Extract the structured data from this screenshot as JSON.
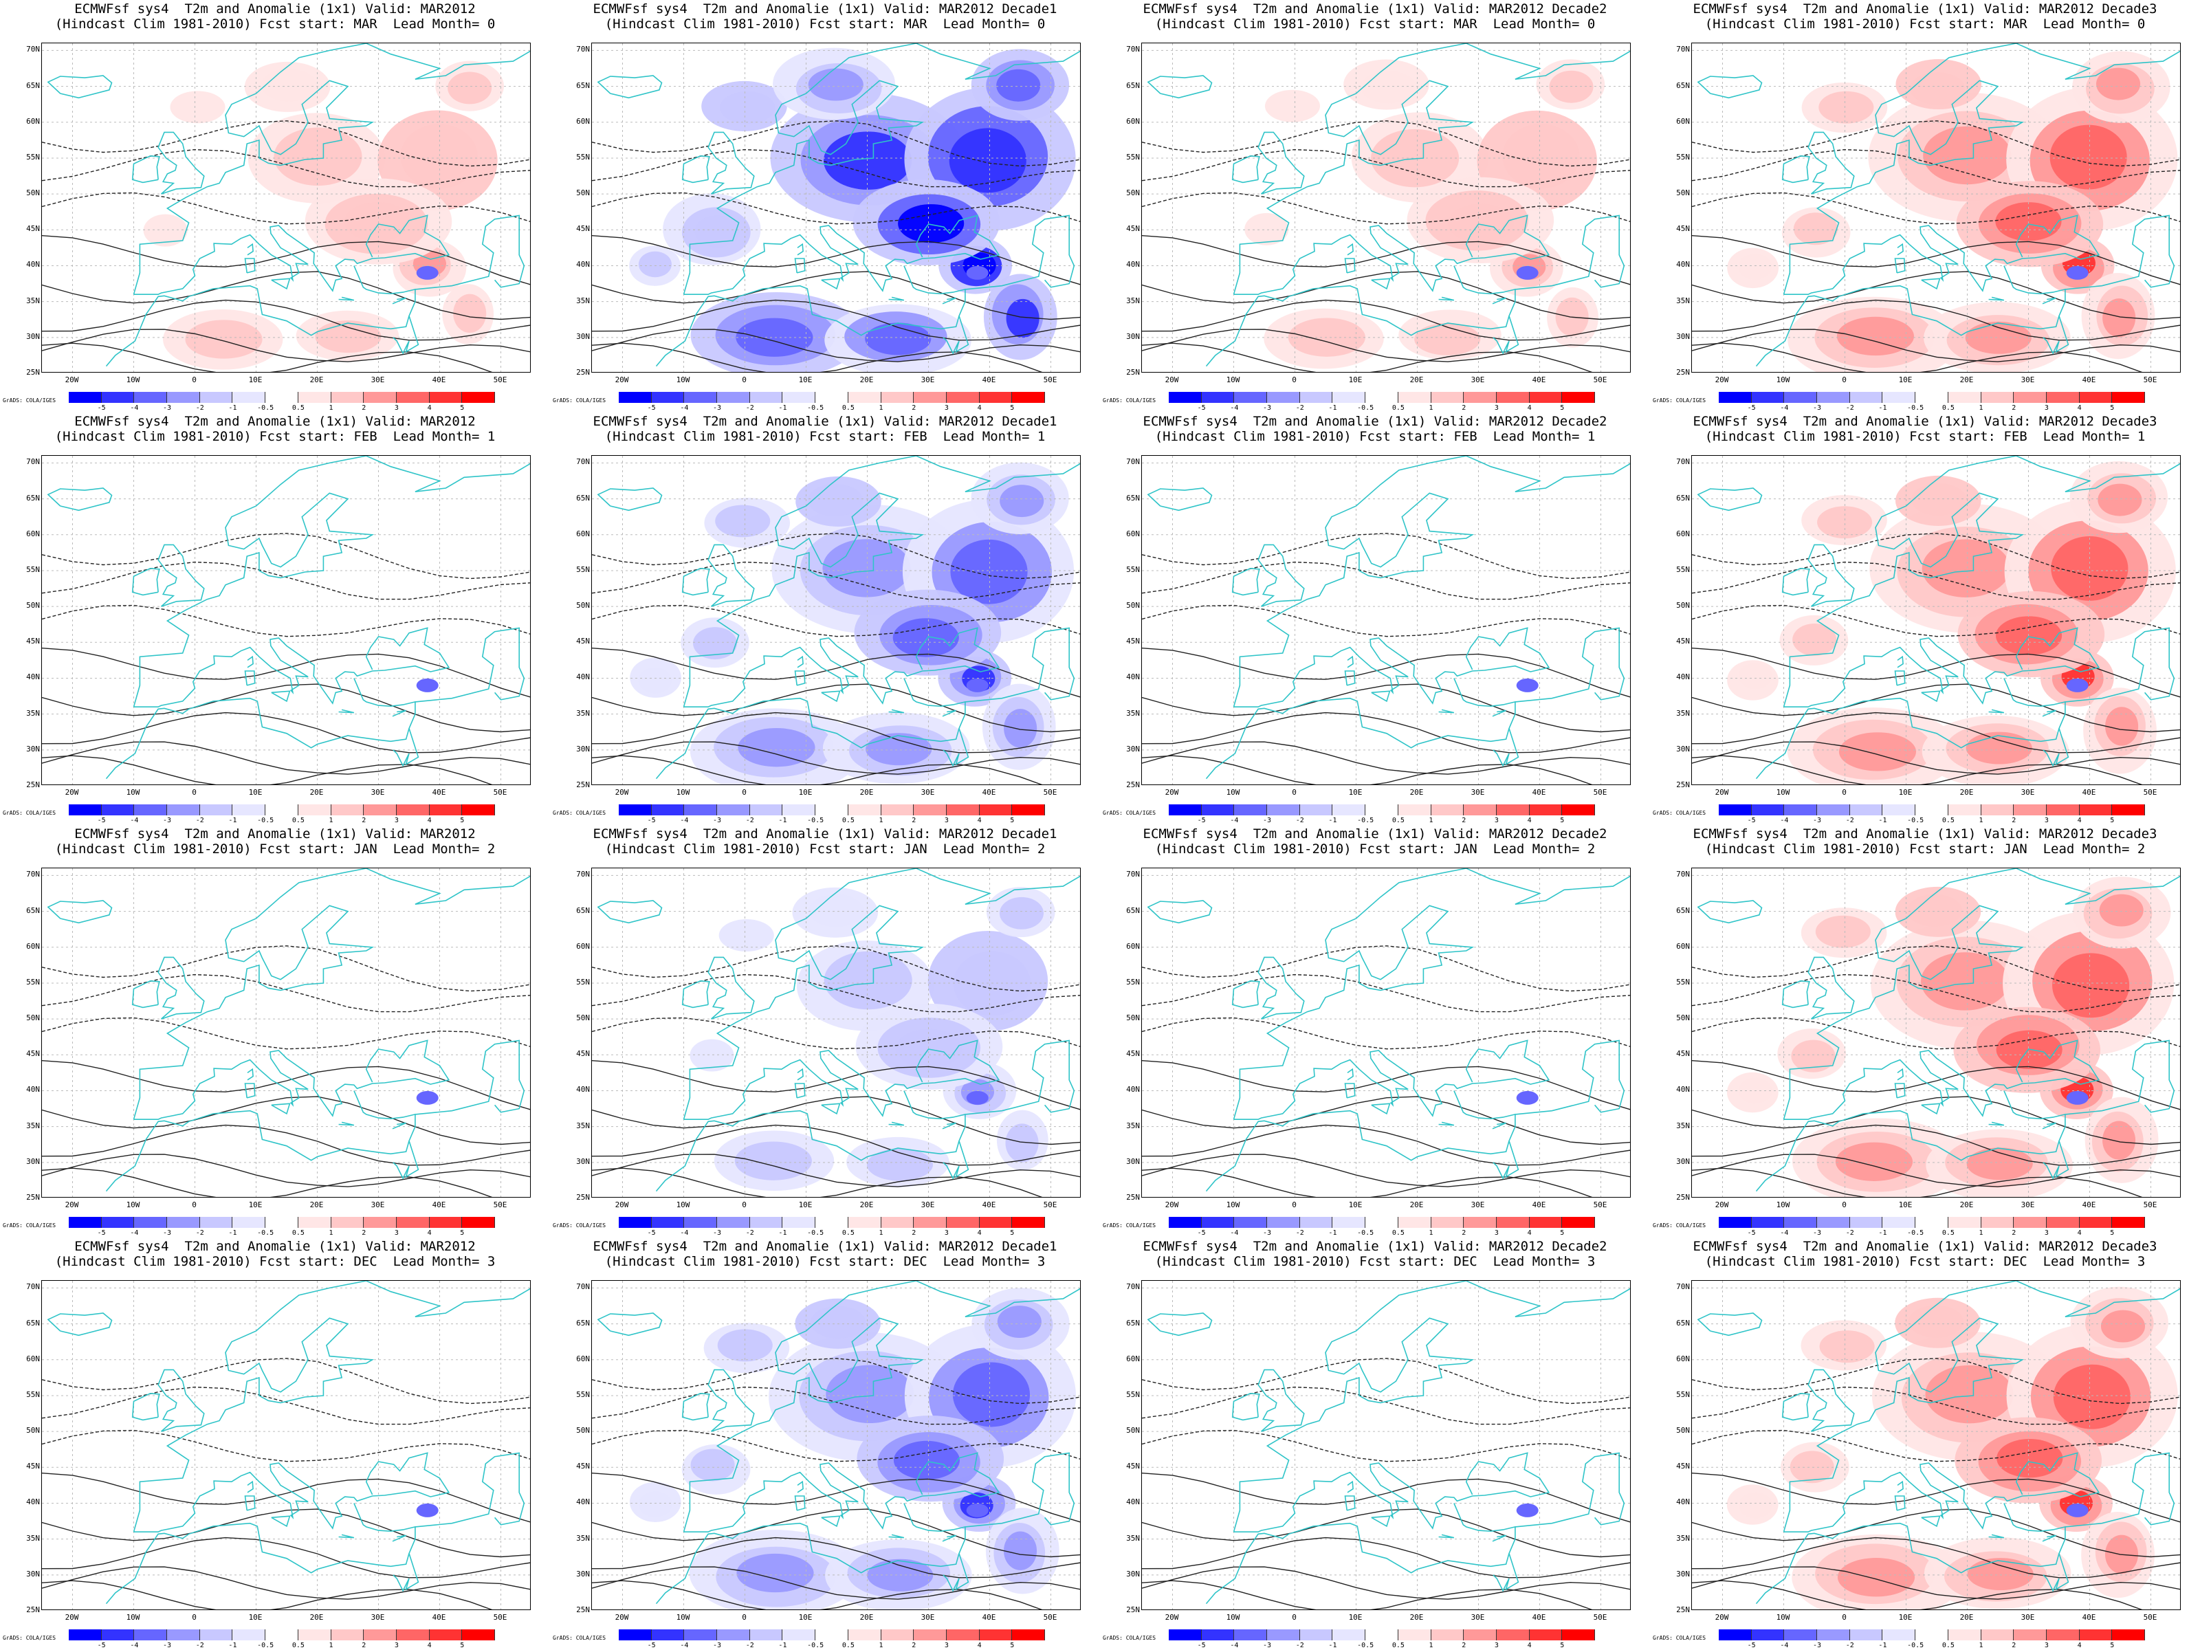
{
  "panels": [
    {
      "title1": "ECMWFsf sys4  T2m and Anomalie (1x1) Valid: MAR2012",
      "title2": "(Hindcast Clim 1981-2010) Fcst start: MAR  Lead Month= 0",
      "anom": 1
    },
    {
      "title1": "ECMWFsf sys4  T2m and Anomalie (1x1) Valid: MAR2012 Decade1",
      "title2": "(Hindcast Clim 1981-2010) Fcst start: MAR  Lead Month= 0",
      "anom": -3
    },
    {
      "title1": "ECMWFsf sys4  T2m and Anomalie (1x1) Valid: MAR2012 Decade2",
      "title2": "(Hindcast Clim 1981-2010) Fcst start: MAR  Lead Month= 0",
      "anom": 1
    },
    {
      "title1": "ECMWFsf sys4  T2m and Anomalie (1x1) Valid: MAR2012 Decade3",
      "title2": "(Hindcast Clim 1981-2010) Fcst start: MAR  Lead Month= 0",
      "anom": 2
    },
    {
      "title1": "ECMWFsf sys4  T2m and Anomalie (1x1) Valid: MAR2012",
      "title2": "(Hindcast Clim 1981-2010) Fcst start: FEB  Lead Month= 1",
      "anom": 0
    },
    {
      "title1": "ECMWFsf sys4  T2m and Anomalie (1x1) Valid: MAR2012 Decade1",
      "title2": "(Hindcast Clim 1981-2010) Fcst start: FEB  Lead Month= 1",
      "anom": -2
    },
    {
      "title1": "ECMWFsf sys4  T2m and Anomalie (1x1) Valid: MAR2012 Decade2",
      "title2": "(Hindcast Clim 1981-2010) Fcst start: FEB  Lead Month= 1",
      "anom": 0
    },
    {
      "title1": "ECMWFsf sys4  T2m and Anomalie (1x1) Valid: MAR2012 Decade3",
      "title2": "(Hindcast Clim 1981-2010) Fcst start: FEB  Lead Month= 1",
      "anom": 2
    },
    {
      "title1": "ECMWFsf sys4  T2m and Anomalie (1x1) Valid: MAR2012",
      "title2": "(Hindcast Clim 1981-2010) Fcst start: JAN  Lead Month= 2",
      "anom": 0
    },
    {
      "title1": "ECMWFsf sys4  T2m and Anomalie (1x1) Valid: MAR2012 Decade1",
      "title2": "(Hindcast Clim 1981-2010) Fcst start: JAN  Lead Month= 2",
      "anom": -1
    },
    {
      "title1": "ECMWFsf sys4  T2m and Anomalie (1x1) Valid: MAR2012 Decade2",
      "title2": "(Hindcast Clim 1981-2010) Fcst start: JAN  Lead Month= 2",
      "anom": 0
    },
    {
      "title1": "ECMWFsf sys4  T2m and Anomalie (1x1) Valid: MAR2012 Decade3",
      "title2": "(Hindcast Clim 1981-2010) Fcst start: JAN  Lead Month= 2",
      "anom": 2
    },
    {
      "title1": "ECMWFsf sys4  T2m and Anomalie (1x1) Valid: MAR2012",
      "title2": "(Hindcast Clim 1981-2010) Fcst start: DEC  Lead Month= 3",
      "anom": 0
    },
    {
      "title1": "ECMWFsf sys4  T2m and Anomalie (1x1) Valid: MAR2012 Decade1",
      "title2": "(Hindcast Clim 1981-2010) Fcst start: DEC  Lead Month= 3",
      "anom": -2
    },
    {
      "title1": "ECMWFsf sys4  T2m and Anomalie (1x1) Valid: MAR2012 Decade2",
      "title2": "(Hindcast Clim 1981-2010) Fcst start: DEC  Lead Month= 3",
      "anom": 0
    },
    {
      "title1": "ECMWFsf sys4  T2m and Anomalie (1x1) Valid: MAR2012 Decade3",
      "title2": "(Hindcast Clim 1981-2010) Fcst start: DEC  Lead Month= 3",
      "anom": 2
    }
  ],
  "lat_labels": [
    "70N",
    "65N",
    "60N",
    "55N",
    "50N",
    "45N",
    "40N",
    "35N",
    "30N",
    "25N"
  ],
  "lon_labels": [
    "20W",
    "10W",
    "0",
    "10E",
    "20E",
    "30E",
    "40E",
    "50E"
  ],
  "colorbar": {
    "ticks": [
      "-5",
      "-4",
      "-3",
      "-2",
      "-1",
      "-0.5",
      "0.5",
      "1",
      "2",
      "3",
      "4",
      "5"
    ],
    "colors": [
      "#0000ff",
      "#3333ff",
      "#6666ff",
      "#9999ff",
      "#c8c8ff",
      "#e6e6ff",
      "#ffffff",
      "#ffe6e6",
      "#ffc8c8",
      "#ff9999",
      "#ff6666",
      "#ff3333",
      "#ff0000"
    ]
  },
  "grads_label": "GrADS: COLA/IGES",
  "chart_data": {
    "type": "heatmap",
    "variable": "T2m and Anomalie",
    "lat_range": [
      "25N",
      "70N"
    ],
    "lon_range": [
      "20W",
      "50E"
    ],
    "levels": [
      -5,
      -4,
      -3,
      -2,
      -1,
      -0.5,
      0.5,
      1,
      2,
      3,
      4,
      5
    ]
  }
}
